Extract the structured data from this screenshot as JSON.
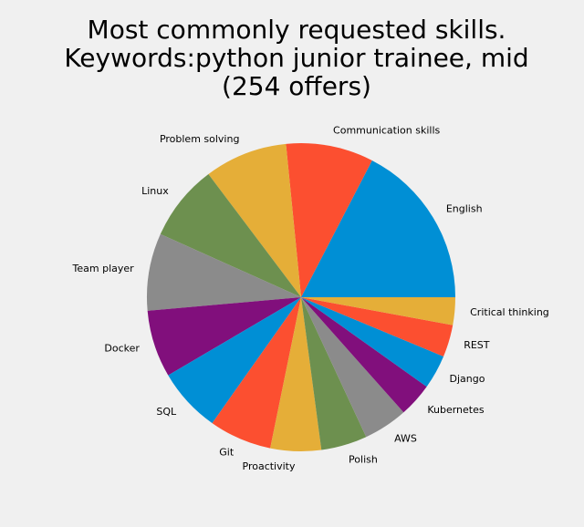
{
  "chart_data": {
    "type": "pie",
    "title_lines": [
      "Most commonly requested skills.",
      "Keywords:python junior trainee, mid",
      "(254 offers)"
    ],
    "start_angle_deg": 0,
    "direction": "counterclockwise",
    "slices": [
      {
        "label": "English",
        "value": 18.0,
        "color": "#008fd5"
      },
      {
        "label": "Communication skills",
        "value": 9.5,
        "color": "#fc4f30"
      },
      {
        "label": "Problem solving",
        "value": 9.0,
        "color": "#e5ae38"
      },
      {
        "label": "Linux",
        "value": 8.3,
        "color": "#6d904f"
      },
      {
        "label": "Team player",
        "value": 8.4,
        "color": "#8b8b8b"
      },
      {
        "label": "Docker",
        "value": 7.3,
        "color": "#810f7c"
      },
      {
        "label": "SQL",
        "value": 7.0,
        "color": "#008fd5"
      },
      {
        "label": "Git",
        "value": 6.8,
        "color": "#fc4f30"
      },
      {
        "label": "Proactivity",
        "value": 5.5,
        "color": "#e5ae38"
      },
      {
        "label": "Polish",
        "value": 5.0,
        "color": "#6d904f"
      },
      {
        "label": "AWS",
        "value": 4.8,
        "color": "#8b8b8b"
      },
      {
        "label": "Kubernetes",
        "value": 3.7,
        "color": "#810f7c"
      },
      {
        "label": "Django",
        "value": 3.7,
        "color": "#008fd5"
      },
      {
        "label": "REST",
        "value": 3.5,
        "color": "#fc4f30"
      },
      {
        "label": "Critical thinking",
        "value": 3.0,
        "color": "#e5ae38"
      }
    ]
  }
}
